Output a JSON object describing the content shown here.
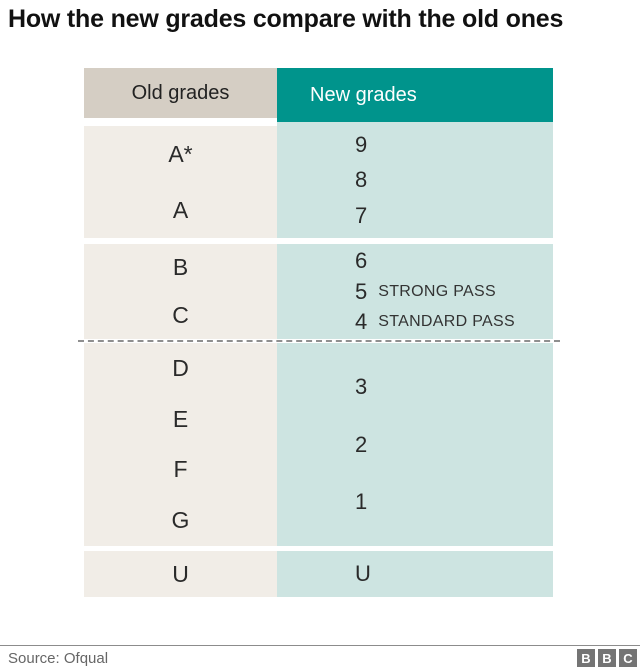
{
  "title": "How the new grades compare with the old ones",
  "chart_data": {
    "type": "table",
    "title": "How the new grades compare with the old ones",
    "columns": [
      "Old grades",
      "New grades"
    ],
    "sections": [
      {
        "old": [
          "A*",
          "A"
        ],
        "new": [
          {
            "grade": "9"
          },
          {
            "grade": "8"
          },
          {
            "grade": "7"
          }
        ],
        "divider_below": false
      },
      {
        "old": [
          "B",
          "C"
        ],
        "new": [
          {
            "grade": "6"
          },
          {
            "grade": "5",
            "label": "STRONG PASS"
          },
          {
            "grade": "4",
            "label": "STANDARD PASS"
          }
        ],
        "divider_below": true
      },
      {
        "old": [
          "D",
          "E",
          "F",
          "G"
        ],
        "new": [
          {
            "grade": "3"
          },
          {
            "grade": "2"
          },
          {
            "grade": "1"
          }
        ],
        "divider_below": false
      },
      {
        "old": [
          "U"
        ],
        "new": [
          {
            "grade": "U"
          }
        ],
        "divider_below": false
      }
    ],
    "source": "Source: Ofqual"
  },
  "footer": {
    "source": "Source: Ofqual",
    "logo_letters": [
      "B",
      "B",
      "C"
    ]
  },
  "layout_heights": {
    "sections": [
      116,
      95,
      203,
      46
    ],
    "gap_after": [
      6,
      0,
      5,
      0
    ]
  },
  "colors": {
    "teal": "#00948c",
    "teal_light": "#cde4e1",
    "beige": "#d5cec4",
    "beige_light": "#f1ede7",
    "divider": "#8f8f8f",
    "logo_gray": "#747474"
  }
}
